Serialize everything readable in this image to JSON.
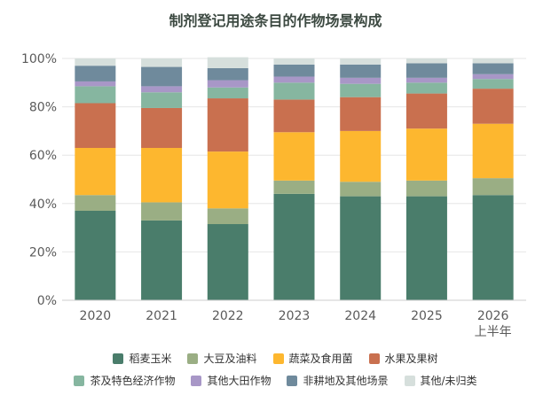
{
  "chart_data": {
    "type": "bar",
    "stacked": true,
    "title": "制剂登记用途条目的作物场景构成",
    "categories": [
      "2020",
      "2021",
      "2022",
      "2023",
      "2024",
      "2025",
      "2026\n上半年"
    ],
    "ylim": [
      0,
      100
    ],
    "yticks": [
      "0%",
      "20%",
      "40%",
      "60%",
      "80%",
      "100%"
    ],
    "grid": true,
    "legend_position": "bottom",
    "series": [
      {
        "name": "稻麦玉米",
        "color": "#4a7d6b",
        "values": [
          37,
          33,
          31.5,
          44,
          43,
          43,
          43.5
        ]
      },
      {
        "name": "大豆及油料",
        "color": "#9aae84",
        "values": [
          6.5,
          7.5,
          6.5,
          5.5,
          6,
          6.5,
          7
        ]
      },
      {
        "name": "蔬菜及食用菌",
        "color": "#fdb72f",
        "values": [
          19.5,
          22.5,
          23.5,
          20,
          21,
          21.5,
          22.5
        ]
      },
      {
        "name": "水果及果树",
        "color": "#c9704f",
        "values": [
          18.5,
          16.5,
          22,
          13.5,
          14,
          14.5,
          14.5
        ]
      },
      {
        "name": "茶及特色经济作物",
        "color": "#86b6a0",
        "values": [
          7,
          6.5,
          4.5,
          7,
          5.5,
          4.5,
          4
        ]
      },
      {
        "name": "其他大田作物",
        "color": "#a897c7",
        "values": [
          2,
          2.5,
          3,
          2.5,
          2.5,
          2,
          2
        ]
      },
      {
        "name": "非耕地及其他场景",
        "color": "#6f8a9c",
        "values": [
          6.5,
          8,
          5,
          5,
          5.5,
          6,
          4.5
        ]
      },
      {
        "name": "其他/未归类",
        "color": "#d6dfdc",
        "values": [
          3,
          3.5,
          4.5,
          2.5,
          2.5,
          2,
          2
        ]
      }
    ]
  }
}
